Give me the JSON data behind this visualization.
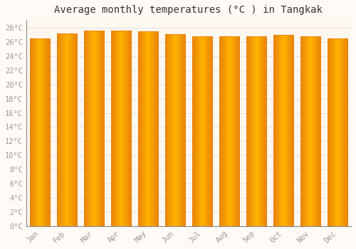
{
  "title": "Average monthly temperatures (°C ) in Tangkak",
  "months": [
    "Jan",
    "Feb",
    "Mar",
    "Apr",
    "May",
    "Jun",
    "Jul",
    "Aug",
    "Sep",
    "Oct",
    "Nov",
    "Dec"
  ],
  "values": [
    26.5,
    27.2,
    27.6,
    27.6,
    27.5,
    27.1,
    26.8,
    26.8,
    26.8,
    27.0,
    26.8,
    26.5
  ],
  "bar_color_center": "#FFB300",
  "bar_color_edge": "#E8820A",
  "background_color": "#FFFAF5",
  "plot_bg_color": "#FFF8F0",
  "grid_color": "#DDDDDD",
  "ylim": [
    0,
    29
  ],
  "ytick_step": 2,
  "title_fontsize": 10,
  "tick_fontsize": 7.5,
  "tick_color": "#999999",
  "bar_width": 0.75,
  "figsize": [
    5.0,
    3.5
  ],
  "dpi": 100
}
